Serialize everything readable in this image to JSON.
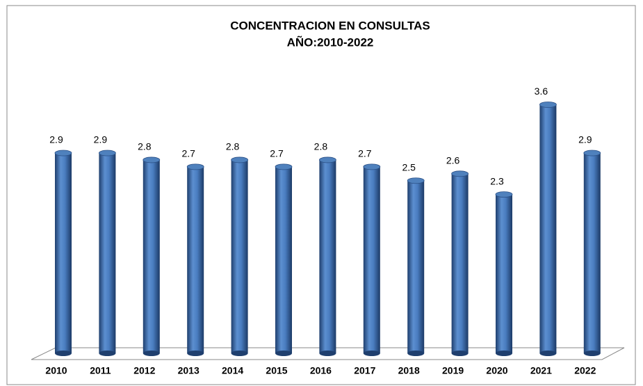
{
  "chart_data": {
    "type": "bar",
    "title": [
      "CONCENTRACION EN CONSULTAS",
      "AÑO:2010-2022"
    ],
    "categories": [
      "2010",
      "2011",
      "2012",
      "2013",
      "2014",
      "2015",
      "2016",
      "2017",
      "2018",
      "2019",
      "2020",
      "2021",
      "2022"
    ],
    "values": [
      2.9,
      2.9,
      2.8,
      2.7,
      2.8,
      2.7,
      2.8,
      2.7,
      2.5,
      2.6,
      2.3,
      3.6,
      2.9
    ],
    "color": "#4f81bd"
  }
}
